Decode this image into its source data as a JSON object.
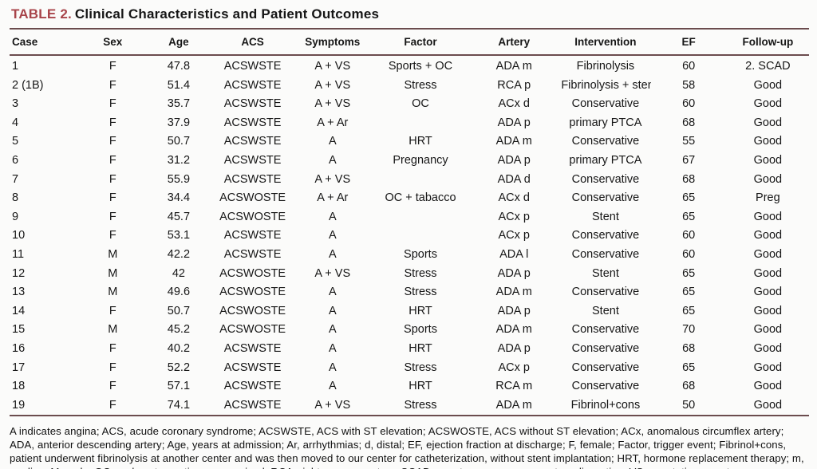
{
  "title": {
    "label": "TABLE 2.",
    "text": "Clinical Characteristics and Patient Outcomes"
  },
  "colors": {
    "accent_red": "#a8444a",
    "rule": "#6b4c4e",
    "text": "#161616"
  },
  "table": {
    "columns": [
      "Case",
      "Sex",
      "Age",
      "ACS",
      "Symptoms",
      "Factor",
      "Artery",
      "Intervention",
      "EF",
      "Follow-up"
    ],
    "rows": [
      [
        "1",
        "F",
        "47.8",
        "ACSWSTE",
        "A + VS",
        "Sports + OC",
        "ADA m",
        "Fibrinolysis",
        "60",
        "2. SCAD"
      ],
      [
        "2 (1B)",
        "F",
        "51.4",
        "ACSWSTE",
        "A + VS",
        "Stress",
        "RCA p",
        "Fibrinolysis + stent",
        "58",
        "Good"
      ],
      [
        "3",
        "F",
        "35.7",
        "ACSWSTE",
        "A + VS",
        "OC",
        "ACx d",
        "Conservative",
        "60",
        "Good"
      ],
      [
        "4",
        "F",
        "37.9",
        "ACSWSTE",
        "A + Ar",
        "",
        "ADA p",
        "primary PTCA",
        "68",
        "Good"
      ],
      [
        "5",
        "F",
        "50.7",
        "ACSWSTE",
        "A",
        "HRT",
        "ADA m",
        "Conservative",
        "55",
        "Good"
      ],
      [
        "6",
        "F",
        "31.2",
        "ACSWSTE",
        "A",
        "Pregnancy",
        "ADA p",
        "primary PTCA",
        "67",
        "Good"
      ],
      [
        "7",
        "F",
        "55.9",
        "ACSWSTE",
        "A + VS",
        "",
        "ADA d",
        "Conservative",
        "68",
        "Good"
      ],
      [
        "8",
        "F",
        "34.4",
        "ACSWOSTE",
        "A + Ar",
        "OC + tabacco",
        "ACx d",
        "Conservative",
        "65",
        "Preg"
      ],
      [
        "9",
        "F",
        "45.7",
        "ACSWOSTE",
        "A",
        "",
        "ACx p",
        "Stent",
        "65",
        "Good"
      ],
      [
        "10",
        "F",
        "53.1",
        "ACSWSTE",
        "A",
        "",
        "ACx p",
        "Conservative",
        "60",
        "Good"
      ],
      [
        "11",
        "M",
        "42.2",
        "ACSWSTE",
        "A",
        "Sports",
        "ADA l",
        "Conservative",
        "60",
        "Good"
      ],
      [
        "12",
        "M",
        "42",
        "ACSWOSTE",
        "A + VS",
        "Stress",
        "ADA p",
        "Stent",
        "65",
        "Good"
      ],
      [
        "13",
        "M",
        "49.6",
        "ACSWOSTE",
        "A",
        "Stress",
        "ADA m",
        "Conservative",
        "65",
        "Good"
      ],
      [
        "14",
        "F",
        "50.7",
        "ACSWOSTE",
        "A",
        "HRT",
        "ADA p",
        "Stent",
        "65",
        "Good"
      ],
      [
        "15",
        "M",
        "45.2",
        "ACSWOSTE",
        "A",
        "Sports",
        "ADA m",
        "Conservative",
        "70",
        "Good"
      ],
      [
        "16",
        "F",
        "40.2",
        "ACSWSTE",
        "A",
        "HRT",
        "ADA p",
        "Conservative",
        "68",
        "Good"
      ],
      [
        "17",
        "F",
        "52.2",
        "ACSWSTE",
        "A",
        "Stress",
        "ACx p",
        "Conservative",
        "65",
        "Good"
      ],
      [
        "18",
        "F",
        "57.1",
        "ACSWSTE",
        "A",
        "HRT",
        "RCA m",
        "Conservative",
        "68",
        "Good"
      ],
      [
        "19",
        "F",
        "74.1",
        "ACSWSTE",
        "A + VS",
        "Stress",
        "ADA m",
        "Fibrinol+cons",
        "50",
        "Good"
      ]
    ]
  },
  "footnote": "A indicates angina; ACS, acude coronary syndrome; ACSWSTE, ACS with ST elevation; ACSWOSTE, ACS without ST elevation; ACx, anomalous circumflex artery; ADA, anterior descending artery; Age, years at admission; Ar, arrhythmias; d, distal; EF, ejection fraction at discharge; F, female; Factor, trigger event; Fibrinol+cons, patient underwent fibrinolysis at another center and was then moved to our center for catheterization, without stent implantation; HRT, hormone replacement therapy; m, median; M, male; OC, oral contraceptives; p, proximal; RCA, right coronary artery; SCAD, spontaneous coronary artery dissection; VS, vegetative symptoms."
}
